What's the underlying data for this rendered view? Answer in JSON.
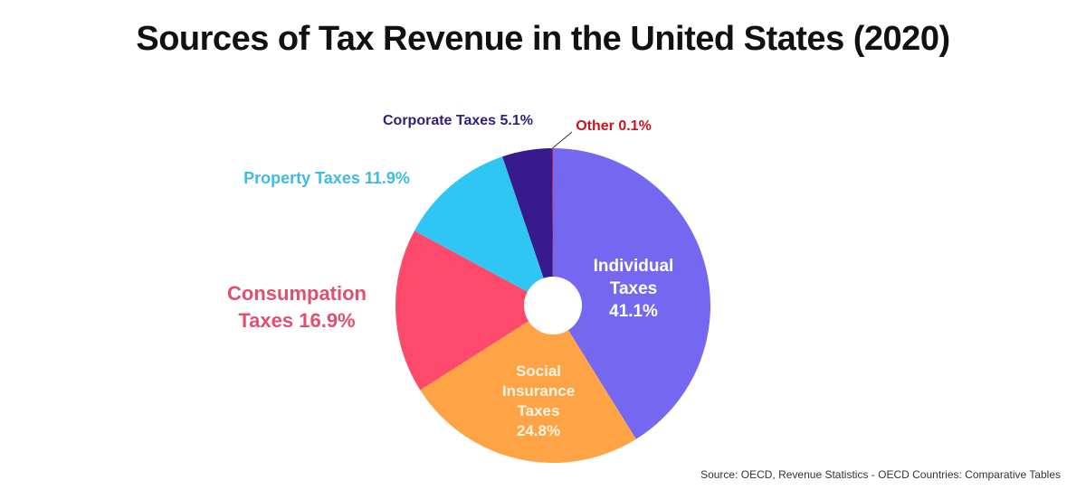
{
  "chart_data": {
    "type": "pie",
    "title": "Sources of Tax Revenue in the United States (2020)",
    "donut": true,
    "start": "top",
    "direction": "clockwise",
    "slices": [
      {
        "name": "Individual Taxes",
        "value": 41.1,
        "color": "#7567EF",
        "label_lines": [
          "Individual",
          "Taxes",
          "41.1%"
        ],
        "label_color": "#FFFFFF",
        "label_placement": "inside"
      },
      {
        "name": "Social Insurance Taxes",
        "value": 24.8,
        "color": "#FEA346",
        "label_lines": [
          "Social",
          "Insurance",
          "Taxes",
          "24.8%"
        ],
        "label_color": "#FFF6E6",
        "label_placement": "inside"
      },
      {
        "name": "Consumption Taxes",
        "value": 16.9,
        "color": "#FD496C",
        "label_lines": [
          "Consumpation",
          "Taxes 16.9%"
        ],
        "label_color": "#E0506E",
        "label_placement": "outside-left"
      },
      {
        "name": "Property Taxes",
        "value": 11.9,
        "color": "#30C6F3",
        "label_lines": [
          "Property Taxes 11.9%"
        ],
        "label_color": "#3DBCE4",
        "label_placement": "outside-left"
      },
      {
        "name": "Corporate Taxes",
        "value": 5.1,
        "color": "#371B8C",
        "label_lines": [
          "Corporate Taxes 5.1%"
        ],
        "label_color": "#331C80",
        "label_placement": "outside-top"
      },
      {
        "name": "Other",
        "value": 0.1,
        "color": "#C4152A",
        "label_lines": [
          "Other 0.1%"
        ],
        "label_color": "#C8141F",
        "label_placement": "outside-top-leader"
      }
    ],
    "source": "Source: OECD, Revenue Statistics - OECD Countries: Comparative Tables"
  }
}
